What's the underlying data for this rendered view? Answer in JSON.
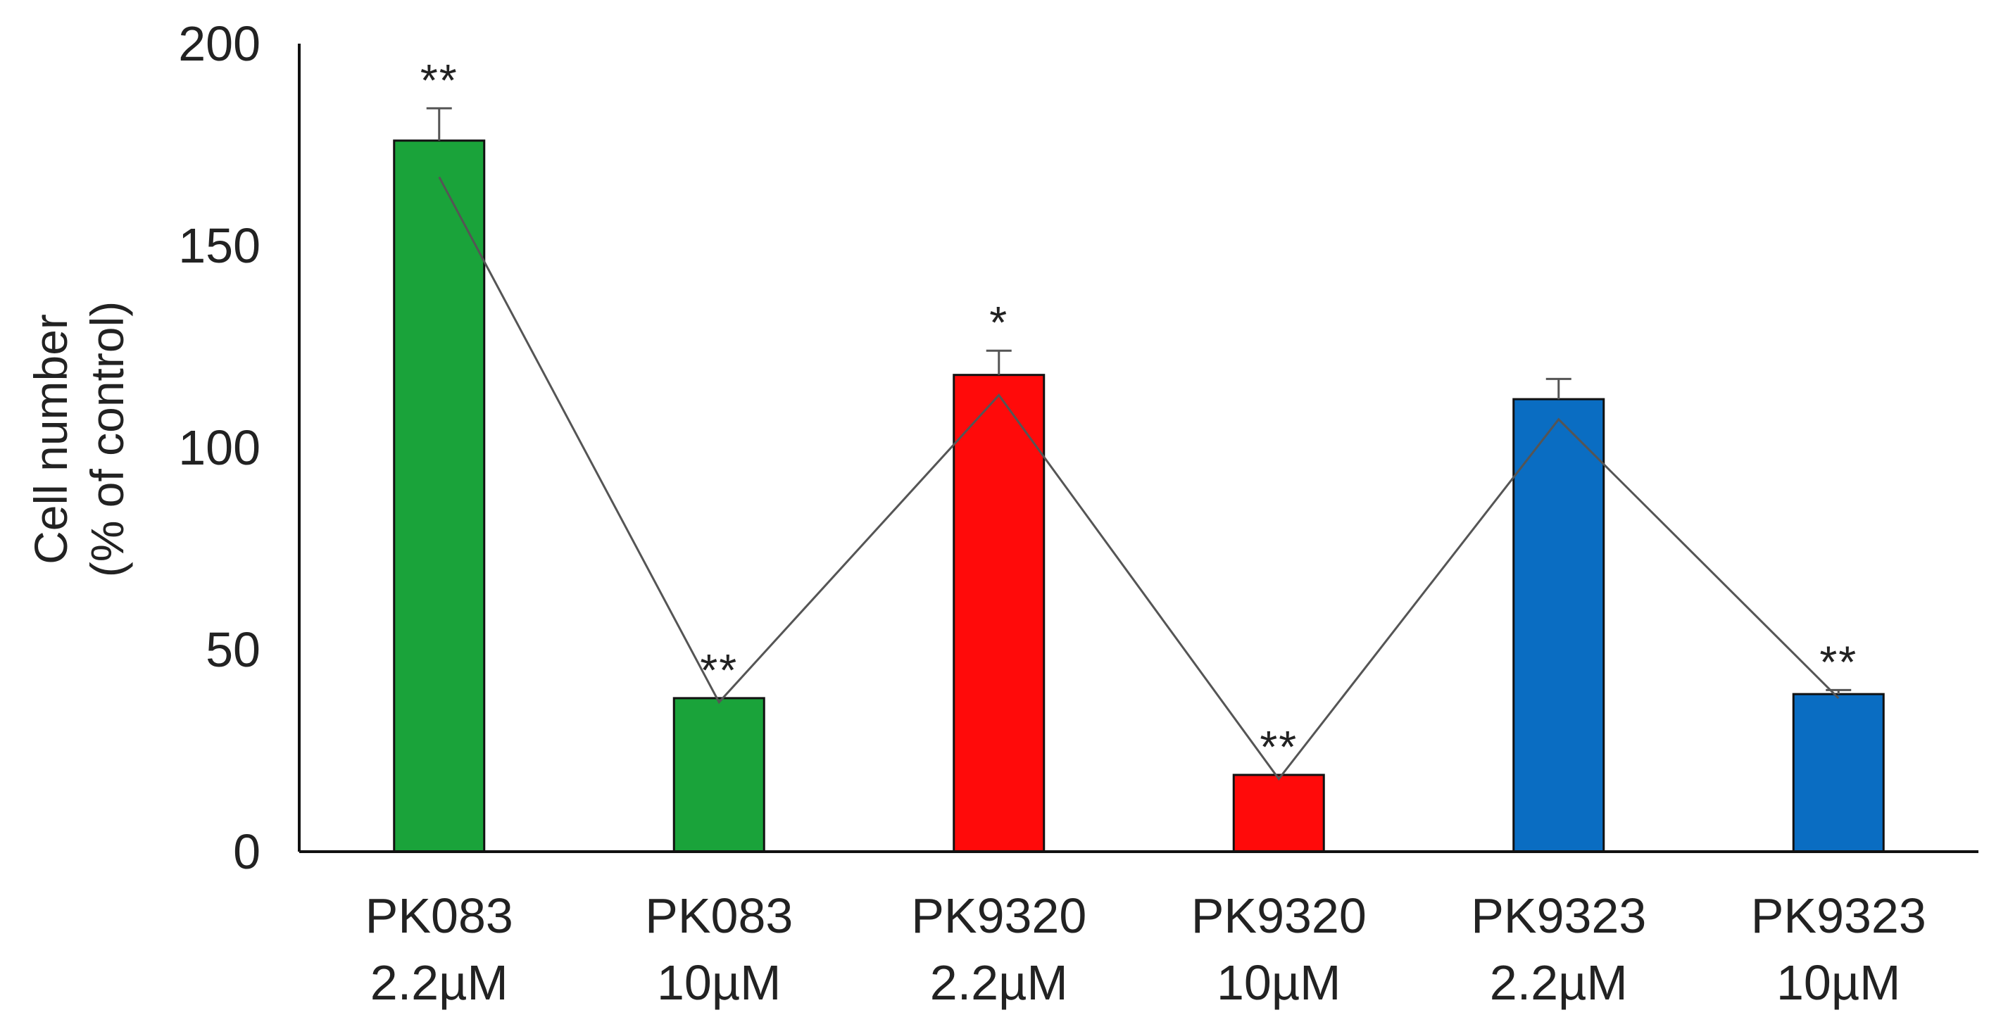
{
  "chart_data": {
    "type": "bar",
    "categories": [
      [
        "PK083",
        "2.2µM"
      ],
      [
        "PK083",
        "10µM"
      ],
      [
        "PK9320",
        "2.2µM"
      ],
      [
        "PK9320",
        "10µM"
      ],
      [
        "PK9323",
        "2.2µM"
      ],
      [
        "PK9323",
        "10µM"
      ]
    ],
    "values": [
      176,
      38,
      118,
      19,
      112,
      39
    ],
    "errors": [
      8,
      0,
      6,
      0,
      5,
      1
    ],
    "bar_colors": [
      "#1aa33a",
      "#1aa33a",
      "#ff0a0a",
      "#ff0a0a",
      "#0a6dc2",
      "#0a6dc2"
    ],
    "significance": [
      "**",
      "**",
      "*",
      "**",
      "",
      "**"
    ],
    "line_overlay": {
      "values": [
        167,
        37,
        113,
        18,
        107,
        38
      ],
      "color": "#555555"
    },
    "ylabel": [
      "Cell number",
      "(% of control)"
    ],
    "ylim": [
      0,
      200
    ],
    "yticks": [
      0,
      50,
      100,
      150,
      200
    ],
    "grid": false,
    "legend": "none"
  }
}
